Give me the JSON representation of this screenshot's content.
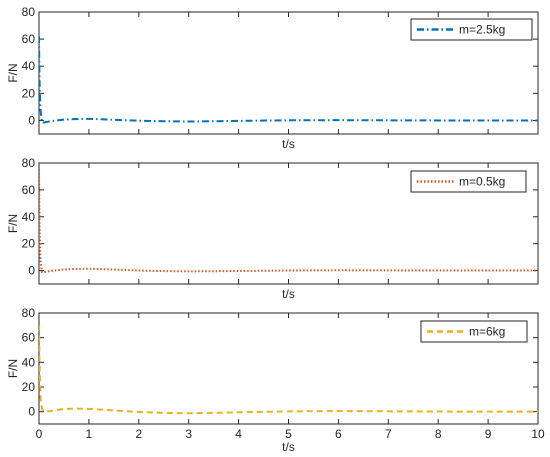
{
  "chart_data": [
    {
      "type": "line",
      "xlim": [
        0,
        10
      ],
      "ylim": [
        -10,
        80
      ],
      "yticks": [
        0,
        20,
        40,
        60,
        80
      ],
      "xticks": [
        0,
        1,
        2,
        3,
        4,
        5,
        6,
        7,
        8,
        9,
        10
      ],
      "show_xtick_labels": false,
      "xlabel": "t/s",
      "ylabel": "F/N",
      "grid": false,
      "legend_position": "top-right",
      "series": [
        {
          "name": "m=2.5kg",
          "color": "#0072BD",
          "dash": "dash-dot",
          "x": [
            0,
            0.01,
            0.03,
            0.06,
            0.1,
            0.2,
            0.3,
            0.5,
            0.7,
            1.0,
            1.3,
            1.7,
            2.0,
            2.5,
            3.0,
            3.5,
            4.0,
            5.0,
            6.0,
            7.0,
            8.0,
            9.0,
            10.0
          ],
          "y": [
            62,
            30,
            8,
            -1.5,
            -1.5,
            -0.8,
            -0.2,
            0.6,
            1.0,
            1.2,
            0.8,
            0.2,
            -0.2,
            -0.6,
            -0.8,
            -0.6,
            -0.3,
            0.1,
            0.2,
            0.1,
            0.0,
            0.0,
            0.0
          ]
        }
      ]
    },
    {
      "type": "line",
      "xlim": [
        0,
        10
      ],
      "ylim": [
        -10,
        80
      ],
      "yticks": [
        0,
        20,
        40,
        60,
        80
      ],
      "xticks": [
        0,
        1,
        2,
        3,
        4,
        5,
        6,
        7,
        8,
        9,
        10
      ],
      "show_xtick_labels": false,
      "xlabel": "t/s",
      "ylabel": "F/N",
      "grid": false,
      "legend_position": "top-right",
      "series": [
        {
          "name": "m=0.5kg",
          "color": "#D95319",
          "dash": "dotted",
          "x": [
            0,
            0.01,
            0.03,
            0.06,
            0.1,
            0.2,
            0.3,
            0.5,
            0.7,
            1.0,
            1.3,
            1.7,
            2.0,
            2.5,
            3.0,
            3.5,
            4.0,
            5.0,
            6.0,
            7.0,
            8.0,
            9.0,
            10.0
          ],
          "y": [
            75,
            35,
            8,
            -1.2,
            -1.2,
            -0.5,
            0.0,
            0.8,
            1.2,
            1.4,
            1.0,
            0.5,
            0.0,
            -0.4,
            -0.6,
            -0.5,
            -0.3,
            0.0,
            0.2,
            0.1,
            0.0,
            0.0,
            0.0
          ]
        }
      ]
    },
    {
      "type": "line",
      "xlim": [
        0,
        10
      ],
      "ylim": [
        -10,
        80
      ],
      "yticks": [
        0,
        20,
        40,
        60,
        80
      ],
      "xticks": [
        0,
        1,
        2,
        3,
        4,
        5,
        6,
        7,
        8,
        9,
        10
      ],
      "show_xtick_labels": true,
      "xlabel": "t/s",
      "ylabel": "F/N",
      "grid": false,
      "legend_position": "top-right",
      "series": [
        {
          "name": "m=6kg",
          "color": "#EDB120",
          "dash": "dashed",
          "x": [
            0,
            0.01,
            0.03,
            0.06,
            0.1,
            0.2,
            0.3,
            0.5,
            0.7,
            1.0,
            1.3,
            1.7,
            2.0,
            2.5,
            3.0,
            3.5,
            4.0,
            5.0,
            6.0,
            7.0,
            8.0,
            9.0,
            10.0
          ],
          "y": [
            70,
            40,
            12,
            2,
            0.3,
            0.3,
            1.0,
            2.2,
            2.5,
            2.3,
            1.5,
            0.5,
            -0.2,
            -1.0,
            -1.3,
            -1.0,
            -0.5,
            0.2,
            0.5,
            0.3,
            0.1,
            0.0,
            0.0
          ]
        }
      ]
    }
  ]
}
